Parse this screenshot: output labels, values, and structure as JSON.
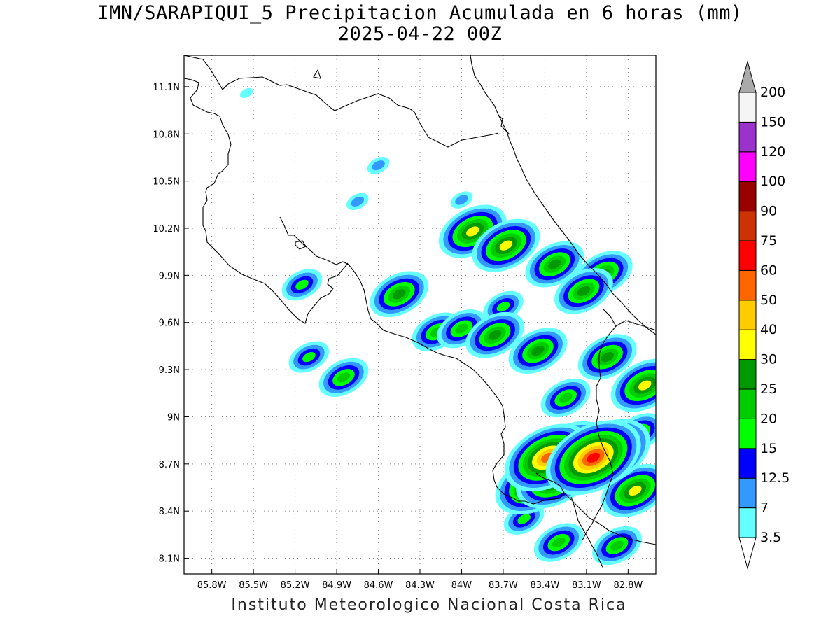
{
  "title_line1": "IMN/SARAPIQUI_5 Precipitacion Acumulada en 6 horas (mm)",
  "title_line2": "2025-04-22 00Z",
  "credit": "Instituto Meteorologico Nacional Costa Rica",
  "map": {
    "lon_range": [
      -86.0,
      -82.6
    ],
    "lat_range": [
      8.0,
      11.3
    ],
    "lon_ticks": [
      {
        "value": -85.8,
        "label": "85.8W"
      },
      {
        "value": -85.5,
        "label": "85.5W"
      },
      {
        "value": -85.2,
        "label": "85.2W"
      },
      {
        "value": -84.9,
        "label": "84.9W"
      },
      {
        "value": -84.6,
        "label": "84.6W"
      },
      {
        "value": -84.3,
        "label": "84.3W"
      },
      {
        "value": -84.0,
        "label": "84W"
      },
      {
        "value": -83.7,
        "label": "83.7W"
      },
      {
        "value": -83.4,
        "label": "83.4W"
      },
      {
        "value": -83.1,
        "label": "83.1W"
      },
      {
        "value": -82.8,
        "label": "82.8W"
      }
    ],
    "lat_ticks": [
      {
        "value": 11.1,
        "label": "11.1N"
      },
      {
        "value": 10.8,
        "label": "10.8N"
      },
      {
        "value": 10.5,
        "label": "10.5N"
      },
      {
        "value": 10.2,
        "label": "10.2N"
      },
      {
        "value": 9.9,
        "label": "9.9N"
      },
      {
        "value": 9.6,
        "label": "9.6N"
      },
      {
        "value": 9.3,
        "label": "9.3N"
      },
      {
        "value": 9.0,
        "label": "9N"
      },
      {
        "value": 8.7,
        "label": "8.7N"
      },
      {
        "value": 8.4,
        "label": "8.4N"
      },
      {
        "value": 8.1,
        "label": "8.1N"
      }
    ],
    "grid": true
  },
  "colorbar": {
    "labels": [
      "3.5",
      "7",
      "12.5",
      "15",
      "20",
      "25",
      "30",
      "40",
      "50",
      "60",
      "75",
      "90",
      "100",
      "120",
      "150",
      "200"
    ],
    "colors": [
      "#66ffff",
      "#3399ff",
      "#0000ff",
      "#00ff00",
      "#00cc00",
      "#009900",
      "#ffff00",
      "#ffcc00",
      "#ff6600",
      "#ff0000",
      "#cc3300",
      "#990000",
      "#ff00ff",
      "#9933cc",
      "#f5f5f5"
    ],
    "top_triangle_color": "#aaaaaa",
    "bottom_triangle_color": "#ffffff"
  },
  "precip_cells": [
    {
      "lon": -83.38,
      "lat": 8.74,
      "level": 8
    },
    {
      "lon": -83.05,
      "lat": 8.74,
      "level": 9
    },
    {
      "lon": -82.95,
      "lat": 8.77,
      "level": 8
    },
    {
      "lon": -83.48,
      "lat": 8.57,
      "level": 7
    },
    {
      "lon": -83.33,
      "lat": 8.61,
      "level": 7
    },
    {
      "lon": -83.22,
      "lat": 8.78,
      "level": 7
    },
    {
      "lon": -82.75,
      "lat": 8.53,
      "level": 6
    },
    {
      "lon": -82.68,
      "lat": 9.2,
      "level": 6
    },
    {
      "lon": -83.92,
      "lat": 10.18,
      "level": 6
    },
    {
      "lon": -83.68,
      "lat": 10.09,
      "level": 6
    },
    {
      "lon": -83.33,
      "lat": 9.97,
      "level": 5
    },
    {
      "lon": -82.98,
      "lat": 9.91,
      "level": 5
    },
    {
      "lon": -83.12,
      "lat": 9.8,
      "level": 5
    },
    {
      "lon": -83.76,
      "lat": 9.52,
      "level": 5
    },
    {
      "lon": -84.45,
      "lat": 9.78,
      "level": 5
    },
    {
      "lon": -83.45,
      "lat": 9.42,
      "level": 5
    },
    {
      "lon": -82.95,
      "lat": 9.38,
      "level": 5
    },
    {
      "lon": -83.25,
      "lat": 9.12,
      "level": 4
    },
    {
      "lon": -82.88,
      "lat": 8.18,
      "level": 4
    },
    {
      "lon": -84.85,
      "lat": 9.25,
      "level": 4
    },
    {
      "lon": -85.1,
      "lat": 9.38,
      "level": 3
    },
    {
      "lon": -85.15,
      "lat": 9.84,
      "level": 3
    },
    {
      "lon": -84.18,
      "lat": 9.54,
      "level": 4
    },
    {
      "lon": -84.0,
      "lat": 9.56,
      "level": 4
    },
    {
      "lon": -83.7,
      "lat": 9.7,
      "level": 3
    },
    {
      "lon": -84.6,
      "lat": 10.6,
      "level": 1
    },
    {
      "lon": -84.75,
      "lat": 10.37,
      "level": 1
    },
    {
      "lon": -85.55,
      "lat": 11.06,
      "level": 0
    },
    {
      "lon": -84.0,
      "lat": 10.38,
      "level": 1
    },
    {
      "lon": -83.55,
      "lat": 8.35,
      "level": 3
    },
    {
      "lon": -83.3,
      "lat": 8.2,
      "level": 4
    },
    {
      "lon": -82.72,
      "lat": 8.9,
      "level": 4
    }
  ]
}
